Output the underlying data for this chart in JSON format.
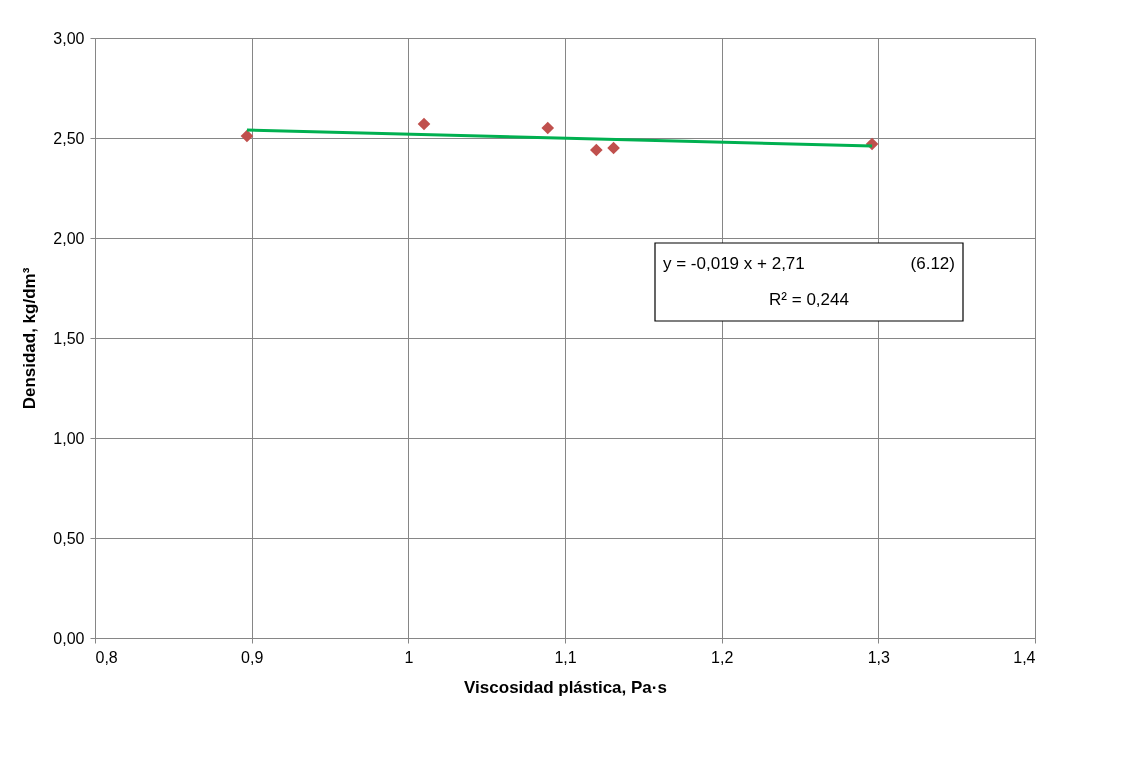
{
  "chart_data": {
    "type": "scatter",
    "xlabel": "Viscosidad plástica, Pa·s",
    "ylabel": "Densidad, kg/dm³",
    "xlim": [
      0.8,
      1.4
    ],
    "ylim": [
      0,
      3
    ],
    "xticks": [
      {
        "value": 0.8,
        "label": "0,8"
      },
      {
        "value": 0.9,
        "label": "0,9"
      },
      1,
      {
        "value": 1.1,
        "label": "1,1"
      },
      {
        "value": 1.2,
        "label": "1,2"
      },
      {
        "value": 1.3,
        "label": "1,3"
      },
      {
        "value": 1.4,
        "label": "1,4"
      }
    ],
    "yticks": [
      {
        "value": 0,
        "label": "0,00"
      },
      {
        "value": 0.5,
        "label": "0,50"
      },
      {
        "value": 1,
        "label": "1,00"
      },
      {
        "value": 1.5,
        "label": "1,50"
      },
      {
        "value": 2,
        "label": "2,00"
      },
      {
        "value": 2.5,
        "label": "2,50"
      },
      {
        "value": 3,
        "label": "3,00"
      }
    ],
    "grid": true,
    "series": [
      {
        "color": "#c0504d",
        "marker": "diamond",
        "x": [
          0.897,
          1.01,
          1.089,
          1.12,
          1.131,
          1.296
        ],
        "values": [
          2.51,
          2.57,
          2.55,
          2.44,
          2.45,
          2.47
        ]
      },
      {
        "type": "line",
        "color": "#00b050",
        "line_style": "solid",
        "x": [
          0.897,
          1.296
        ],
        "values": [
          2.54,
          2.46
        ]
      }
    ],
    "annotations": [
      "y = -0,019 x + 2,71",
      "(6.12)",
      "R² = 0,244"
    ]
  }
}
